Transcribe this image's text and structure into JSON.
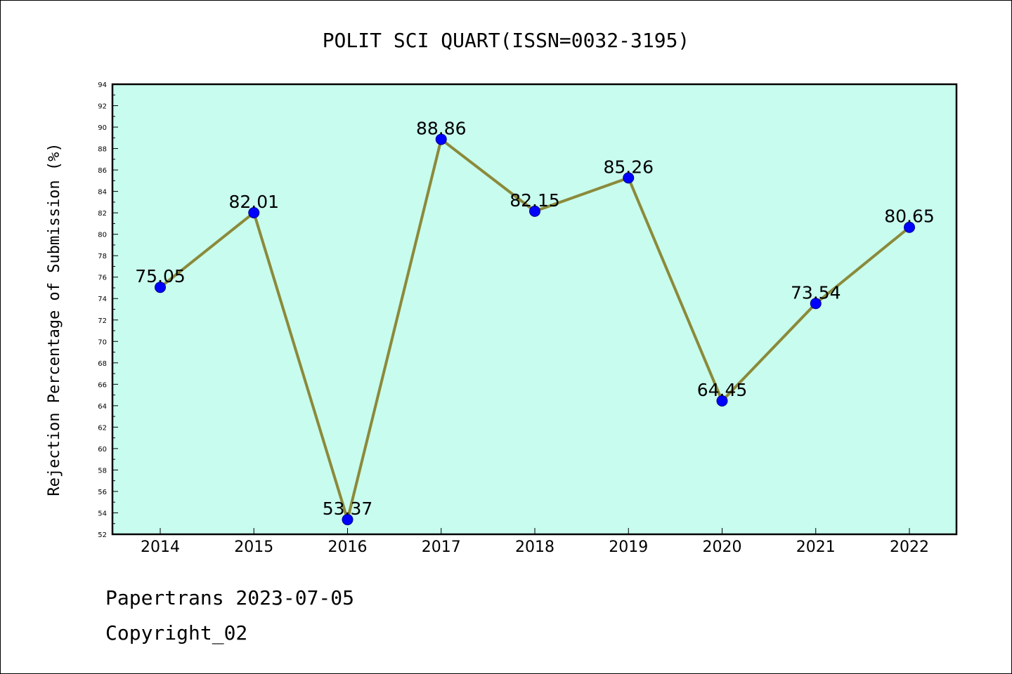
{
  "chart_data": {
    "type": "line",
    "title": "POLIT SCI QUART(ISSN=0032-3195)",
    "xlabel": "",
    "ylabel": "Rejection Percentage of Submission (%)",
    "categories": [
      "2014",
      "2015",
      "2016",
      "2017",
      "2018",
      "2019",
      "2020",
      "2021",
      "2022"
    ],
    "values": [
      75.05,
      82.01,
      53.37,
      88.86,
      82.15,
      85.26,
      64.45,
      73.54,
      80.65
    ],
    "data_labels": [
      "75.05",
      "82.01",
      "53.37",
      "88.86",
      "82.15",
      "85.26",
      "64.45",
      "73.54",
      "80.65"
    ],
    "ylim": [
      52,
      94
    ],
    "yticks": [
      52,
      54,
      56,
      58,
      60,
      62,
      64,
      66,
      68,
      70,
      72,
      74,
      76,
      78,
      80,
      82,
      84,
      86,
      88,
      90,
      92,
      94
    ],
    "grid": false,
    "legend": "none",
    "colors": {
      "plot_background": "#c8fcee",
      "line": "#8b8a3a",
      "marker": "#0000ff",
      "marker_edge": "#00008b"
    }
  },
  "footer": {
    "line1": "Papertrans 2023-07-05",
    "line2": "Copyright_02"
  }
}
